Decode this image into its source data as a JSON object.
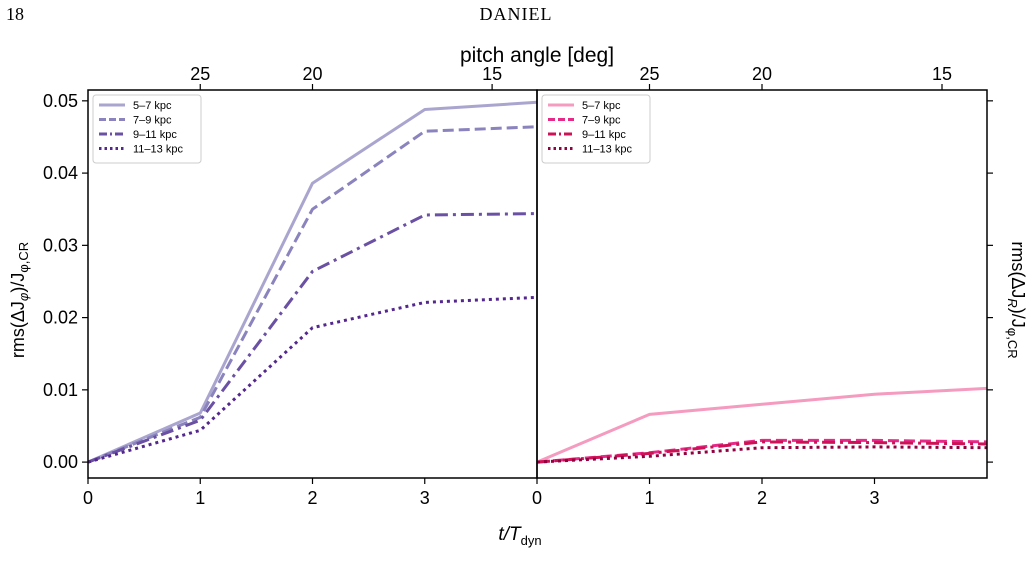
{
  "page": {
    "page_number": "18",
    "running_head": "DANIEL"
  },
  "figure": {
    "top_axis_label": "pitch angle [deg]",
    "x_axis_label": "t/T",
    "x_axis_label_sub": "dyn"
  },
  "chart_data": [
    {
      "type": "line",
      "panel": "left",
      "ylabel": "rms(ΔJ",
      "ylabel_sub1": "φ",
      "ylabel_mid": ")/J",
      "ylabel_sub2": "φ,CR",
      "xlim": [
        0,
        4
      ],
      "ylim": [
        -0.0022,
        0.0515
      ],
      "xticks": [
        0,
        1,
        2,
        3
      ],
      "xtick_labels": [
        "0",
        "1",
        "2",
        "3"
      ],
      "yticks": [
        0.0,
        0.01,
        0.02,
        0.03,
        0.04,
        0.05
      ],
      "ytick_labels": [
        "0.00",
        "0.01",
        "0.02",
        "0.03",
        "0.04",
        "0.05"
      ],
      "top_ticks": [
        {
          "x": 1.0,
          "label": "25"
        },
        {
          "x": 2.0,
          "label": "20"
        },
        {
          "x": 3.6,
          "label": "15"
        }
      ],
      "legend_position": "top-left",
      "x": [
        0,
        1,
        2,
        3,
        4
      ],
      "series": [
        {
          "name": "5–7 kpc",
          "color": "#aaa5cf",
          "dash": "solid",
          "values": [
            0.0,
            0.0068,
            0.0386,
            0.0488,
            0.0498
          ]
        },
        {
          "name": "7–9 kpc",
          "color": "#8a83bd",
          "dash": "dashed",
          "values": [
            0.0,
            0.0062,
            0.035,
            0.0458,
            0.0464
          ]
        },
        {
          "name": "9–11 kpc",
          "color": "#6a51a3",
          "dash": "dashdot",
          "values": [
            0.0,
            0.0058,
            0.0264,
            0.0342,
            0.0344
          ]
        },
        {
          "name": "11–13 kpc",
          "color": "#54278f",
          "dash": "dotted",
          "values": [
            0.0,
            0.0044,
            0.0186,
            0.0221,
            0.0228
          ]
        }
      ]
    },
    {
      "type": "line",
      "panel": "right",
      "ylabel": "rms(ΔJ",
      "ylabel_sub1": "R",
      "ylabel_mid": ")/J",
      "ylabel_sub2": "φ,CR",
      "xlim": [
        0,
        4
      ],
      "ylim": [
        -0.0022,
        0.0515
      ],
      "xticks": [
        0,
        1,
        2,
        3
      ],
      "xtick_labels": [
        "0",
        "1",
        "2",
        "3"
      ],
      "yticks": [
        0.0,
        0.01,
        0.02,
        0.03,
        0.04,
        0.05
      ],
      "top_ticks": [
        {
          "x": 1.0,
          "label": "25"
        },
        {
          "x": 2.0,
          "label": "20"
        },
        {
          "x": 3.6,
          "label": "15"
        }
      ],
      "legend_position": "top-left",
      "x": [
        0,
        1,
        2,
        3,
        4
      ],
      "series": [
        {
          "name": "5–7 kpc",
          "color": "#f49bbf",
          "dash": "solid",
          "values": [
            0.0,
            0.0066,
            0.008,
            0.0094,
            0.0102
          ]
        },
        {
          "name": "7–9 kpc",
          "color": "#e7298a",
          "dash": "dashed",
          "values": [
            0.0,
            0.0013,
            0.003,
            0.003,
            0.0028
          ]
        },
        {
          "name": "9–11 kpc",
          "color": "#ce1256",
          "dash": "dashdot",
          "values": [
            0.0,
            0.0012,
            0.0028,
            0.0027,
            0.0025
          ]
        },
        {
          "name": "11–13 kpc",
          "color": "#91003f",
          "dash": "dotted",
          "values": [
            0.0,
            0.0008,
            0.002,
            0.0021,
            0.002
          ]
        }
      ]
    }
  ]
}
